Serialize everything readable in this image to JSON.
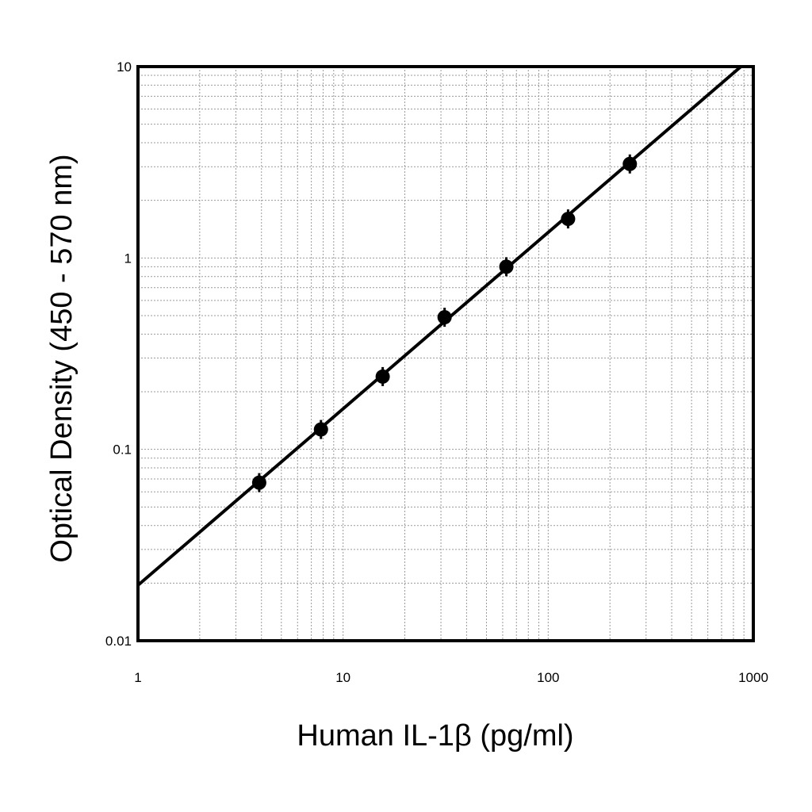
{
  "chart_data": {
    "type": "scatter",
    "title": "",
    "xlabel": "Human IL-1β (pg/ml)",
    "ylabel": "Optical Density (450 - 570 nm)",
    "x_scale": "log",
    "y_scale": "log",
    "xlim": [
      1,
      1000
    ],
    "ylim": [
      0.01,
      10
    ],
    "x_ticks": [
      {
        "value": 1,
        "label": "1"
      },
      {
        "value": 10,
        "label": "10"
      },
      {
        "value": 100,
        "label": "100"
      },
      {
        "value": 1000,
        "label": "1000"
      }
    ],
    "y_ticks": [
      {
        "value": 0.01,
        "label": "0.01"
      },
      {
        "value": 0.1,
        "label": "0.1"
      },
      {
        "value": 1,
        "label": "1"
      },
      {
        "value": 10,
        "label": "10"
      }
    ],
    "grid": true,
    "series": [
      {
        "points": [
          {
            "x": 3.9,
            "y": 0.067
          },
          {
            "x": 7.8,
            "y": 0.127
          },
          {
            "x": 15.6,
            "y": 0.24
          },
          {
            "x": 31.25,
            "y": 0.49
          },
          {
            "x": 62.5,
            "y": 0.9
          },
          {
            "x": 125,
            "y": 1.6
          },
          {
            "x": 250,
            "y": 3.1
          }
        ]
      }
    ],
    "fit_line": {
      "x": [
        1,
        870
      ],
      "y": [
        0.0195,
        10
      ]
    }
  }
}
